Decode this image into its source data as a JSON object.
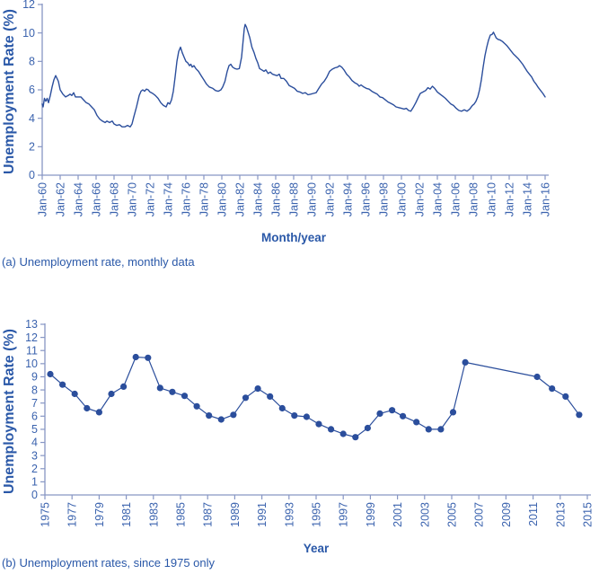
{
  "colors": {
    "series": "#2b4e9c",
    "axis_line": "#8796c4",
    "tick_label": "#3b63ae",
    "axis_title": "#2a58a8",
    "caption": "#2a58a8",
    "background": "#ffffff"
  },
  "chart_data": [
    {
      "id": "monthly",
      "type": "line",
      "title": "",
      "xlabel": "Month/year",
      "ylabel": "Unemployment Rate (%)",
      "caption": "(a) Unemployment rate, monthly data",
      "legend": "none",
      "grid": false,
      "xlim": [
        1960,
        2016
      ],
      "ylim": [
        0,
        12
      ],
      "x_tick_step": 2,
      "x_ticks": [
        "Jan-60",
        "Jan-62",
        "Jan-64",
        "Jan-66",
        "Jan-68",
        "Jan-70",
        "Jan-72",
        "Jan-74",
        "Jan-76",
        "Jan-78",
        "Jan-80",
        "Jan-82",
        "Jan-84",
        "Jan-86",
        "Jan-88",
        "Jan-90",
        "Jan-92",
        "Jan-94",
        "Jan-96",
        "Jan-98",
        "Jan-00",
        "Jan-02",
        "Jan-04",
        "Jan-06",
        "Jan-08",
        "Jan-10",
        "Jan-12",
        "Jan-14",
        "Jan-16"
      ],
      "y_ticks": [
        0,
        2,
        4,
        6,
        8,
        10,
        12
      ],
      "marker": false,
      "points": [
        [
          1960.0,
          5.0
        ],
        [
          1960.1,
          4.8
        ],
        [
          1960.25,
          5.4
        ],
        [
          1960.4,
          5.2
        ],
        [
          1960.55,
          5.4
        ],
        [
          1960.7,
          5.1
        ],
        [
          1960.9,
          5.6
        ],
        [
          1961.1,
          6.2
        ],
        [
          1961.3,
          6.7
        ],
        [
          1961.5,
          7.0
        ],
        [
          1961.65,
          6.8
        ],
        [
          1961.8,
          6.6
        ],
        [
          1962.0,
          6.0
        ],
        [
          1962.3,
          5.7
        ],
        [
          1962.6,
          5.5
        ],
        [
          1962.9,
          5.6
        ],
        [
          1963.1,
          5.7
        ],
        [
          1963.3,
          5.6
        ],
        [
          1963.5,
          5.8
        ],
        [
          1963.7,
          5.5
        ],
        [
          1964.0,
          5.5
        ],
        [
          1964.3,
          5.5
        ],
        [
          1964.6,
          5.3
        ],
        [
          1964.9,
          5.1
        ],
        [
          1965.2,
          5.0
        ],
        [
          1965.5,
          4.8
        ],
        [
          1965.8,
          4.6
        ],
        [
          1966.1,
          4.2
        ],
        [
          1966.4,
          3.95
        ],
        [
          1966.7,
          3.8
        ],
        [
          1967.0,
          3.7
        ],
        [
          1967.2,
          3.8
        ],
        [
          1967.5,
          3.7
        ],
        [
          1967.8,
          3.8
        ],
        [
          1968.0,
          3.6
        ],
        [
          1968.3,
          3.5
        ],
        [
          1968.6,
          3.55
        ],
        [
          1968.9,
          3.4
        ],
        [
          1969.2,
          3.4
        ],
        [
          1969.5,
          3.5
        ],
        [
          1969.8,
          3.4
        ],
        [
          1970.0,
          3.6
        ],
        [
          1970.2,
          4.1
        ],
        [
          1970.5,
          4.8
        ],
        [
          1970.8,
          5.6
        ],
        [
          1971.0,
          5.9
        ],
        [
          1971.2,
          6.0
        ],
        [
          1971.4,
          5.9
        ],
        [
          1971.6,
          6.05
        ],
        [
          1971.8,
          6.0
        ],
        [
          1972.0,
          5.85
        ],
        [
          1972.3,
          5.75
        ],
        [
          1972.6,
          5.6
        ],
        [
          1972.9,
          5.4
        ],
        [
          1973.2,
          5.1
        ],
        [
          1973.5,
          4.9
        ],
        [
          1973.8,
          4.8
        ],
        [
          1974.0,
          5.1
        ],
        [
          1974.2,
          5.0
        ],
        [
          1974.4,
          5.3
        ],
        [
          1974.6,
          5.9
        ],
        [
          1974.8,
          6.9
        ],
        [
          1975.0,
          8.0
        ],
        [
          1975.2,
          8.7
        ],
        [
          1975.4,
          9.0
        ],
        [
          1975.6,
          8.6
        ],
        [
          1975.8,
          8.3
        ],
        [
          1976.0,
          8.0
        ],
        [
          1976.2,
          7.9
        ],
        [
          1976.4,
          7.7
        ],
        [
          1976.55,
          7.8
        ],
        [
          1976.7,
          7.6
        ],
        [
          1976.9,
          7.7
        ],
        [
          1977.1,
          7.5
        ],
        [
          1977.4,
          7.3
        ],
        [
          1977.7,
          7.0
        ],
        [
          1978.0,
          6.7
        ],
        [
          1978.3,
          6.4
        ],
        [
          1978.6,
          6.2
        ],
        [
          1979.0,
          6.1
        ],
        [
          1979.3,
          5.95
        ],
        [
          1979.6,
          5.9
        ],
        [
          1979.9,
          6.0
        ],
        [
          1980.1,
          6.2
        ],
        [
          1980.35,
          6.6
        ],
        [
          1980.6,
          7.3
        ],
        [
          1980.8,
          7.7
        ],
        [
          1981.0,
          7.8
        ],
        [
          1981.2,
          7.6
        ],
        [
          1981.45,
          7.5
        ],
        [
          1981.7,
          7.45
        ],
        [
          1981.95,
          7.5
        ],
        [
          1982.2,
          8.3
        ],
        [
          1982.35,
          9.3
        ],
        [
          1982.5,
          10.3
        ],
        [
          1982.6,
          10.6
        ],
        [
          1982.75,
          10.4
        ],
        [
          1982.9,
          10.1
        ],
        [
          1983.1,
          9.7
        ],
        [
          1983.35,
          9.0
        ],
        [
          1983.6,
          8.6
        ],
        [
          1983.8,
          8.2
        ],
        [
          1984.0,
          7.9
        ],
        [
          1984.2,
          7.5
        ],
        [
          1984.45,
          7.4
        ],
        [
          1984.7,
          7.3
        ],
        [
          1984.9,
          7.4
        ],
        [
          1985.15,
          7.15
        ],
        [
          1985.4,
          7.25
        ],
        [
          1985.65,
          7.1
        ],
        [
          1985.9,
          7.05
        ],
        [
          1986.15,
          7.0
        ],
        [
          1986.4,
          7.1
        ],
        [
          1986.6,
          6.8
        ],
        [
          1986.9,
          6.8
        ],
        [
          1987.2,
          6.6
        ],
        [
          1987.5,
          6.3
        ],
        [
          1987.8,
          6.2
        ],
        [
          1988.1,
          6.1
        ],
        [
          1988.4,
          5.9
        ],
        [
          1988.7,
          5.85
        ],
        [
          1989.0,
          5.75
        ],
        [
          1989.3,
          5.8
        ],
        [
          1989.6,
          5.65
        ],
        [
          1989.9,
          5.7
        ],
        [
          1990.2,
          5.75
        ],
        [
          1990.5,
          5.8
        ],
        [
          1990.8,
          6.1
        ],
        [
          1991.1,
          6.4
        ],
        [
          1991.4,
          6.6
        ],
        [
          1991.7,
          6.9
        ],
        [
          1992.0,
          7.3
        ],
        [
          1992.3,
          7.45
        ],
        [
          1992.6,
          7.55
        ],
        [
          1992.9,
          7.6
        ],
        [
          1993.1,
          7.7
        ],
        [
          1993.35,
          7.6
        ],
        [
          1993.6,
          7.4
        ],
        [
          1993.9,
          7.1
        ],
        [
          1994.2,
          6.9
        ],
        [
          1994.5,
          6.65
        ],
        [
          1994.8,
          6.5
        ],
        [
          1995.1,
          6.4
        ],
        [
          1995.3,
          6.25
        ],
        [
          1995.5,
          6.35
        ],
        [
          1995.8,
          6.2
        ],
        [
          1996.1,
          6.1
        ],
        [
          1996.4,
          6.05
        ],
        [
          1996.7,
          5.9
        ],
        [
          1997.0,
          5.8
        ],
        [
          1997.3,
          5.7
        ],
        [
          1997.6,
          5.5
        ],
        [
          1997.9,
          5.45
        ],
        [
          1998.2,
          5.3
        ],
        [
          1998.5,
          5.15
        ],
        [
          1998.8,
          5.05
        ],
        [
          1999.1,
          4.95
        ],
        [
          1999.4,
          4.8
        ],
        [
          1999.7,
          4.75
        ],
        [
          2000.0,
          4.7
        ],
        [
          2000.3,
          4.65
        ],
        [
          2000.55,
          4.7
        ],
        [
          2000.8,
          4.55
        ],
        [
          2001.05,
          4.5
        ],
        [
          2001.3,
          4.75
        ],
        [
          2001.6,
          5.1
        ],
        [
          2001.9,
          5.5
        ],
        [
          2002.1,
          5.75
        ],
        [
          2002.4,
          5.85
        ],
        [
          2002.7,
          5.95
        ],
        [
          2002.95,
          6.15
        ],
        [
          2003.2,
          6.05
        ],
        [
          2003.45,
          6.25
        ],
        [
          2003.7,
          6.1
        ],
        [
          2004.0,
          5.85
        ],
        [
          2004.3,
          5.7
        ],
        [
          2004.6,
          5.55
        ],
        [
          2004.9,
          5.4
        ],
        [
          2005.2,
          5.2
        ],
        [
          2005.5,
          5.0
        ],
        [
          2005.8,
          4.9
        ],
        [
          2006.1,
          4.7
        ],
        [
          2006.4,
          4.55
        ],
        [
          2006.7,
          4.5
        ],
        [
          2007.0,
          4.6
        ],
        [
          2007.3,
          4.5
        ],
        [
          2007.6,
          4.65
        ],
        [
          2007.9,
          4.9
        ],
        [
          2008.1,
          5.0
        ],
        [
          2008.3,
          5.2
        ],
        [
          2008.5,
          5.5
        ],
        [
          2008.7,
          6.0
        ],
        [
          2008.9,
          6.7
        ],
        [
          2009.1,
          7.6
        ],
        [
          2009.3,
          8.4
        ],
        [
          2009.5,
          9.0
        ],
        [
          2009.7,
          9.5
        ],
        [
          2009.9,
          9.85
        ],
        [
          2010.1,
          9.9
        ],
        [
          2010.25,
          10.05
        ],
        [
          2010.4,
          9.85
        ],
        [
          2010.55,
          9.65
        ],
        [
          2010.75,
          9.55
        ],
        [
          2011.0,
          9.5
        ],
        [
          2011.25,
          9.4
        ],
        [
          2011.5,
          9.25
        ],
        [
          2011.75,
          9.1
        ],
        [
          2012.0,
          8.9
        ],
        [
          2012.25,
          8.7
        ],
        [
          2012.5,
          8.5
        ],
        [
          2012.75,
          8.35
        ],
        [
          2013.0,
          8.2
        ],
        [
          2013.25,
          8.0
        ],
        [
          2013.5,
          7.8
        ],
        [
          2013.75,
          7.55
        ],
        [
          2014.0,
          7.3
        ],
        [
          2014.25,
          7.1
        ],
        [
          2014.5,
          6.9
        ],
        [
          2014.75,
          6.6
        ],
        [
          2015.0,
          6.4
        ],
        [
          2015.25,
          6.15
        ],
        [
          2015.5,
          5.95
        ],
        [
          2015.75,
          5.75
        ],
        [
          2016.0,
          5.5
        ]
      ]
    },
    {
      "id": "since1975",
      "type": "line",
      "title": "",
      "xlabel": "Year",
      "ylabel": "Unemployment Rate (%)",
      "caption": "(b) Unemployment rates, since 1975 only",
      "legend": "none",
      "grid": false,
      "xlim": [
        1975,
        2015
      ],
      "ylim": [
        0,
        13
      ],
      "x_tick_step": 2,
      "x_ticks": [
        "1975",
        "1977",
        "1979",
        "1981",
        "1983",
        "1985",
        "1987",
        "1989",
        "1991",
        "1993",
        "1995",
        "1997",
        "1999",
        "2001",
        "2003",
        "2005",
        "2007",
        "2009",
        "2011",
        "2013",
        "2015"
      ],
      "y_ticks": [
        0,
        1,
        2,
        3,
        4,
        5,
        6,
        7,
        8,
        9,
        10,
        11,
        12,
        13
      ],
      "marker": true,
      "points": [
        [
          1975.4,
          9.2
        ],
        [
          1976.3,
          8.4
        ],
        [
          1977.2,
          7.7
        ],
        [
          1978.1,
          6.6
        ],
        [
          1979.0,
          6.3
        ],
        [
          1979.9,
          7.7
        ],
        [
          1980.8,
          8.25
        ],
        [
          1981.7,
          10.5
        ],
        [
          1982.6,
          10.45
        ],
        [
          1983.5,
          8.15
        ],
        [
          1984.4,
          7.85
        ],
        [
          1985.3,
          7.55
        ],
        [
          1986.2,
          6.75
        ],
        [
          1987.1,
          6.05
        ],
        [
          1988.0,
          5.75
        ],
        [
          1988.9,
          6.1
        ],
        [
          1989.8,
          7.4
        ],
        [
          1990.7,
          8.1
        ],
        [
          1991.6,
          7.5
        ],
        [
          1992.5,
          6.6
        ],
        [
          1993.4,
          6.05
        ],
        [
          1994.3,
          5.95
        ],
        [
          1995.2,
          5.4
        ],
        [
          1996.1,
          5.0
        ],
        [
          1997.0,
          4.65
        ],
        [
          1997.9,
          4.4
        ],
        [
          1998.8,
          5.1
        ],
        [
          1999.7,
          6.2
        ],
        [
          2000.6,
          6.45
        ],
        [
          2001.4,
          6.0
        ],
        [
          2002.4,
          5.55
        ],
        [
          2003.3,
          5.0
        ],
        [
          2004.2,
          5.0
        ],
        [
          2005.1,
          6.3
        ],
        [
          2006.0,
          10.1
        ],
        [
          2011.3,
          9.0
        ],
        [
          2012.4,
          8.1
        ],
        [
          2013.4,
          7.5
        ],
        [
          2014.4,
          6.1
        ]
      ]
    }
  ]
}
